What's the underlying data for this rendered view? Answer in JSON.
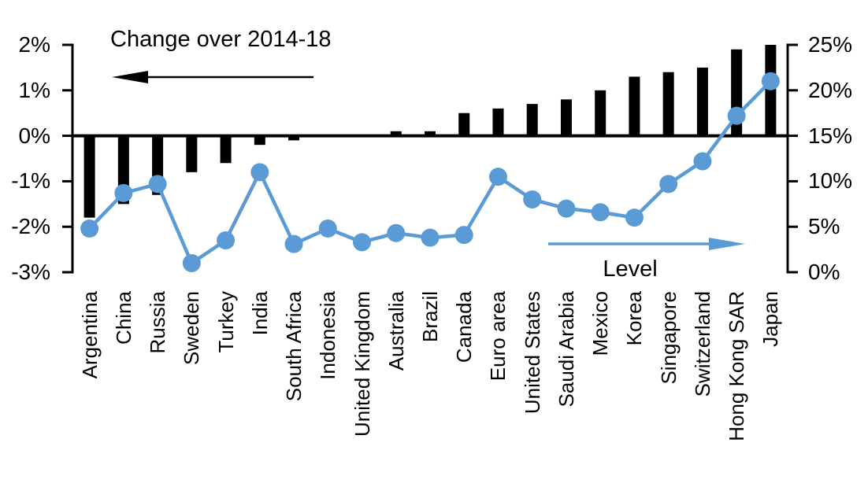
{
  "chart_data": {
    "type": "bar",
    "subtype": "dual-axis bar and line",
    "title": "Change over 2014-18",
    "categories": [
      "Argentina",
      "China",
      "Russia",
      "Sweden",
      "Turkey",
      "India",
      "South Africa",
      "Indonesia",
      "United Kingdom",
      "Australia",
      "Brazil",
      "Canada",
      "Euro area",
      "United States",
      "Saudi Arabia",
      "Mexico",
      "Korea",
      "Singapore",
      "Switzerland",
      "Hong Kong SAR",
      "Japan"
    ],
    "series": [
      {
        "name": "Change over 2014-18",
        "type": "bar",
        "axis": "left",
        "unit": "%",
        "color": "#000000",
        "values": [
          -1.8,
          -1.5,
          -1.3,
          -0.8,
          -0.6,
          -0.2,
          -0.1,
          0,
          0,
          0.1,
          0.1,
          0.5,
          0.6,
          0.7,
          0.8,
          1.0,
          1.3,
          1.4,
          1.5,
          1.9,
          2.0
        ]
      },
      {
        "name": "Level",
        "type": "line",
        "axis": "right",
        "unit": "%",
        "color": "#5B9BD5",
        "values": [
          4.8,
          8.7,
          9.7,
          1.0,
          3.5,
          11.0,
          3.1,
          4.8,
          3.3,
          4.3,
          3.8,
          4.1,
          10.5,
          8.0,
          7.0,
          6.6,
          6.0,
          9.7,
          12.2,
          17.2,
          21.0
        ]
      }
    ],
    "left_axis": {
      "min": -3,
      "max": 2,
      "tick_labels": [
        "2%",
        "1%",
        "0%",
        "-1%",
        "-2%",
        "-3%"
      ]
    },
    "right_axis": {
      "min": 0,
      "max": 25,
      "tick_labels": [
        "25%",
        "20%",
        "15%",
        "10%",
        "5%",
        "0%"
      ]
    },
    "grid": "off",
    "legend": "annotated arrows instead of legend box"
  },
  "labels": {
    "title": "Change over 2014-18",
    "level": "Level"
  },
  "annotations": {
    "bar_arrow_direction": "left",
    "line_arrow_direction": "right"
  },
  "colors": {
    "bar": "#000000",
    "line": "#5B9BD5",
    "axis": "#000000",
    "background": "#FFFFFF"
  }
}
